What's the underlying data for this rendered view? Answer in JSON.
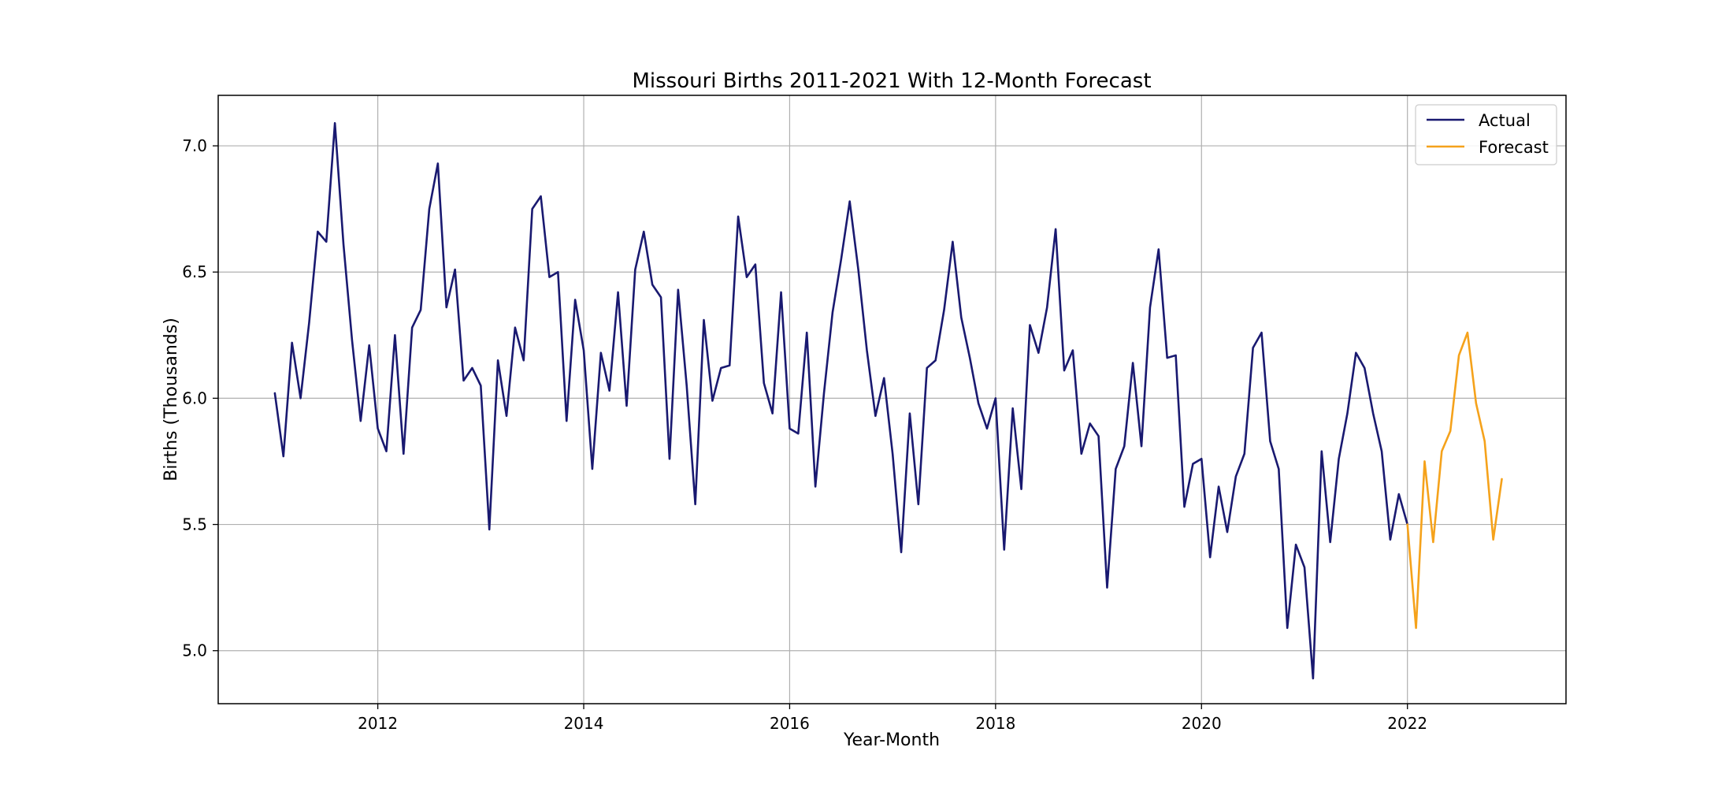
{
  "chart_data": {
    "type": "line",
    "title": "Missouri Births 2011-2021 With 12-Month Forecast",
    "xlabel": "Year-Month",
    "ylabel": "Births (Thousands)",
    "xlim": [
      2010.45,
      2023.54
    ],
    "ylim": [
      4.79,
      7.2
    ],
    "x_ticks": [
      2012,
      2014,
      2016,
      2018,
      2020,
      2022
    ],
    "y_ticks": [
      5.0,
      5.5,
      6.0,
      6.5,
      7.0
    ],
    "y_tick_labels": [
      "5.0",
      "5.5",
      "6.0",
      "6.5",
      "7.0"
    ],
    "x_tick_labels": [
      "2012",
      "2014",
      "2016",
      "2018",
      "2020",
      "2022"
    ],
    "grid": true,
    "legend_position": "top-right",
    "series": [
      {
        "name": "Actual",
        "color": "#191970",
        "start": "2011-01",
        "values": [
          6.02,
          5.77,
          6.22,
          6.0,
          6.3,
          6.66,
          6.62,
          7.09,
          6.61,
          6.23,
          5.91,
          6.21,
          5.88,
          5.79,
          6.25,
          5.78,
          6.28,
          6.35,
          6.75,
          6.93,
          6.36,
          6.51,
          6.07,
          6.12,
          6.05,
          5.48,
          6.15,
          5.93,
          6.28,
          6.15,
          6.75,
          6.8,
          6.48,
          6.5,
          5.91,
          6.39,
          6.19,
          5.72,
          6.18,
          6.03,
          6.42,
          5.97,
          6.51,
          6.66,
          6.45,
          6.4,
          5.76,
          6.43,
          6.05,
          5.58,
          6.31,
          5.99,
          6.12,
          6.13,
          6.72,
          6.48,
          6.53,
          6.06,
          5.94,
          6.42,
          5.88,
          5.86,
          6.26,
          5.65,
          6.02,
          6.34,
          6.55,
          6.78,
          6.51,
          6.19,
          5.93,
          6.08,
          5.78,
          5.39,
          5.94,
          5.58,
          6.12,
          6.15,
          6.35,
          6.62,
          6.32,
          6.16,
          5.98,
          5.88,
          6.0,
          5.4,
          5.96,
          5.64,
          6.29,
          6.18,
          6.36,
          6.67,
          6.11,
          6.19,
          5.78,
          5.9,
          5.85,
          5.25,
          5.72,
          5.81,
          6.14,
          5.81,
          6.36,
          6.59,
          6.16,
          6.17,
          5.57,
          5.74,
          5.76,
          5.37,
          5.65,
          5.47,
          5.69,
          5.78,
          6.2,
          6.26,
          5.83,
          5.72,
          5.09,
          5.42,
          5.33,
          4.89,
          5.79,
          5.43,
          5.76,
          5.94,
          6.18,
          6.12,
          5.94,
          5.79,
          5.44,
          5.62,
          5.5
        ]
      },
      {
        "name": "Forecast",
        "color": "#f5a21b",
        "start": "2022-01",
        "values": [
          5.5,
          5.09,
          5.75,
          5.43,
          5.79,
          5.87,
          6.17,
          6.26,
          5.98,
          5.83,
          5.44,
          5.68
        ]
      }
    ]
  }
}
